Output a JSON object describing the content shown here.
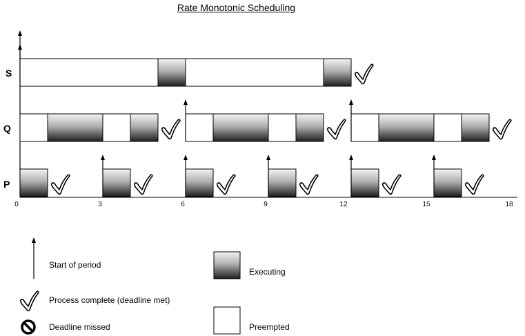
{
  "title": "Rate Monotonic Scheduling",
  "rows": [
    {
      "label": "S"
    },
    {
      "label": "Q"
    },
    {
      "label": "P"
    }
  ],
  "x_ticks": [
    "0",
    "3",
    "6",
    "9",
    "12",
    "15",
    "18"
  ],
  "timeline": {
    "S": {
      "periods": [
        [
          0,
          12
        ]
      ],
      "executing": [
        [
          5,
          6
        ],
        [
          11,
          12
        ]
      ],
      "complete_at": [
        12
      ],
      "period_arrows": [
        0
      ]
    },
    "Q": {
      "periods": [
        [
          0,
          5
        ],
        [
          6,
          11
        ],
        [
          12,
          17
        ]
      ],
      "executing": [
        [
          1,
          3
        ],
        [
          4,
          5
        ],
        [
          7,
          9
        ],
        [
          10,
          11
        ],
        [
          13,
          15
        ],
        [
          16,
          17
        ]
      ],
      "complete_at": [
        5,
        11,
        17
      ],
      "period_arrows": [
        6,
        12
      ]
    },
    "P": {
      "periods": [
        [
          0,
          1
        ],
        [
          3,
          4
        ],
        [
          6,
          7
        ],
        [
          9,
          10
        ],
        [
          12,
          13
        ],
        [
          15,
          16
        ]
      ],
      "executing": [
        [
          0,
          1
        ],
        [
          3,
          4
        ],
        [
          6,
          7
        ],
        [
          9,
          10
        ],
        [
          12,
          13
        ],
        [
          15,
          16
        ]
      ],
      "complete_at": [
        1,
        4,
        7,
        10,
        13,
        16
      ],
      "period_arrows": [
        3,
        6,
        9,
        12,
        15
      ]
    }
  },
  "legend": {
    "start_of_period": "Start of period",
    "process_complete": "Process complete (deadline met)",
    "deadline_missed": "Deadline missed",
    "executing": "Executing",
    "preempted": "Preempted"
  },
  "icons": {
    "check": "check-icon",
    "missed": "deadline-missed-icon",
    "arrow": "period-start-arrow-icon"
  }
}
